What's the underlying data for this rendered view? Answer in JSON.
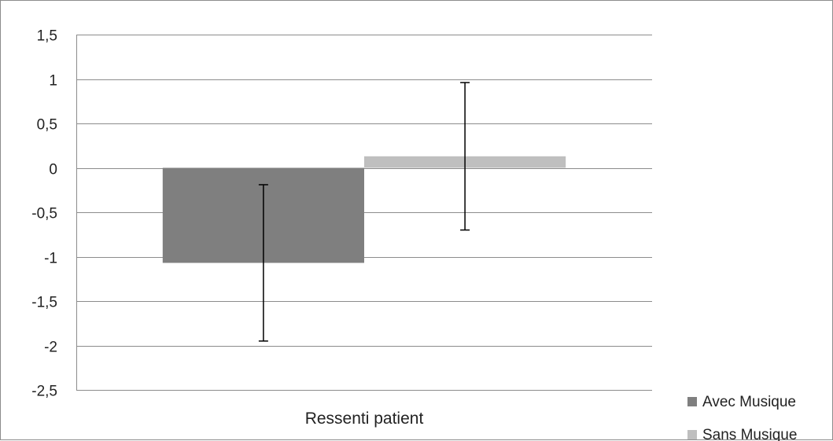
{
  "chart_data": {
    "type": "bar",
    "title": "",
    "xlabel": "",
    "ylabel": "",
    "categories": [
      "Ressenti patient"
    ],
    "series": [
      {
        "name": "Avec Musique",
        "values": [
          -1.07
        ],
        "error_low": [
          -1.95
        ],
        "error_high": [
          -0.19
        ],
        "color": "#7f7f7f"
      },
      {
        "name": "Sans Musique",
        "values": [
          0.13
        ],
        "error_low": [
          -0.7
        ],
        "error_high": [
          0.96
        ],
        "color": "#bfbfbf"
      }
    ],
    "ylim": [
      -2.5,
      1.5
    ],
    "yticks": [
      1.5,
      1,
      0.5,
      0,
      -0.5,
      -1,
      -1.5,
      -2,
      -2.5
    ],
    "ytick_labels": [
      "1,5",
      "1",
      "0,5",
      "0",
      "-0,5",
      "-1",
      "-1,5",
      "-2",
      "-2,5"
    ],
    "grid": true,
    "legend_position": "bottom-right"
  },
  "colors": {
    "gridline": "#8c8c8c",
    "error_bar": "#000000",
    "text": "#222222"
  }
}
